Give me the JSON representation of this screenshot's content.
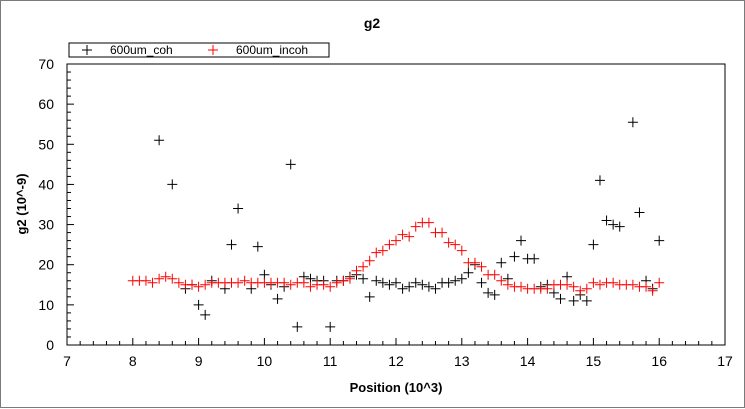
{
  "chart_data": {
    "type": "scatter",
    "title": "g2",
    "xlabel": "Position (10^3)",
    "ylabel": "g2 (10^-9)",
    "xlim": [
      7,
      17
    ],
    "ylim": [
      0,
      70
    ],
    "xticks": [
      "7",
      "8",
      "9",
      "10",
      "11",
      "12",
      "13",
      "14",
      "15",
      "16",
      "17"
    ],
    "yticks": [
      "0",
      "10",
      "20",
      "30",
      "40",
      "50",
      "60",
      "70"
    ],
    "grid": false,
    "legend_position": "top-left",
    "series": [
      {
        "name": "600um_coh",
        "color": "#000000",
        "marker": "plus",
        "points": [
          [
            8.4,
            51
          ],
          [
            8.6,
            40
          ],
          [
            8.8,
            14
          ],
          [
            8.9,
            15
          ],
          [
            9.0,
            10
          ],
          [
            9.1,
            7.5
          ],
          [
            9.2,
            16
          ],
          [
            9.4,
            14
          ],
          [
            9.5,
            25
          ],
          [
            9.6,
            34
          ],
          [
            9.8,
            14
          ],
          [
            9.9,
            24.5
          ],
          [
            10.0,
            17.5
          ],
          [
            10.1,
            15
          ],
          [
            10.2,
            11.5
          ],
          [
            10.3,
            14.5
          ],
          [
            10.4,
            45
          ],
          [
            10.5,
            4.5
          ],
          [
            10.6,
            17
          ],
          [
            10.7,
            16.5
          ],
          [
            10.8,
            16
          ],
          [
            10.9,
            16
          ],
          [
            11.0,
            4.5
          ],
          [
            11.1,
            16
          ],
          [
            11.2,
            16
          ],
          [
            11.3,
            17
          ],
          [
            11.4,
            17.5
          ],
          [
            11.5,
            16.5
          ],
          [
            11.6,
            12
          ],
          [
            11.7,
            16
          ],
          [
            11.8,
            15.5
          ],
          [
            11.9,
            15
          ],
          [
            12.0,
            15.5
          ],
          [
            12.1,
            14
          ],
          [
            12.2,
            14.5
          ],
          [
            12.3,
            15.5
          ],
          [
            12.4,
            15
          ],
          [
            12.5,
            14.5
          ],
          [
            12.6,
            14
          ],
          [
            12.7,
            15.5
          ],
          [
            12.8,
            15.5
          ],
          [
            12.9,
            16
          ],
          [
            13.0,
            16.5
          ],
          [
            13.1,
            18
          ],
          [
            13.2,
            20
          ],
          [
            13.3,
            15.5
          ],
          [
            13.4,
            13
          ],
          [
            13.5,
            12.5
          ],
          [
            13.6,
            20.5
          ],
          [
            13.7,
            16.5
          ],
          [
            13.8,
            22
          ],
          [
            13.9,
            26
          ],
          [
            14.0,
            21.5
          ],
          [
            14.1,
            21.5
          ],
          [
            14.2,
            14.5
          ],
          [
            14.3,
            15
          ],
          [
            14.4,
            13
          ],
          [
            14.5,
            11.5
          ],
          [
            14.6,
            17
          ],
          [
            14.7,
            11
          ],
          [
            14.8,
            12.5
          ],
          [
            14.9,
            11
          ],
          [
            15.0,
            25
          ],
          [
            15.1,
            41
          ],
          [
            15.2,
            31
          ],
          [
            15.3,
            30
          ],
          [
            15.4,
            29.5
          ],
          [
            15.6,
            55.5
          ],
          [
            15.7,
            33
          ],
          [
            15.8,
            16
          ],
          [
            15.9,
            14
          ],
          [
            16.0,
            26
          ]
        ]
      },
      {
        "name": "600um_incoh",
        "color": "#ff0000",
        "marker": "plus",
        "points": [
          [
            8.0,
            16
          ],
          [
            8.1,
            16
          ],
          [
            8.2,
            16
          ],
          [
            8.3,
            15.5
          ],
          [
            8.4,
            16.5
          ],
          [
            8.5,
            17
          ],
          [
            8.6,
            16.5
          ],
          [
            8.7,
            15.5
          ],
          [
            8.8,
            15
          ],
          [
            8.9,
            15
          ],
          [
            9.0,
            14.5
          ],
          [
            9.1,
            15
          ],
          [
            9.2,
            15.5
          ],
          [
            9.3,
            15.5
          ],
          [
            9.4,
            15.5
          ],
          [
            9.5,
            15.5
          ],
          [
            9.6,
            15.5
          ],
          [
            9.7,
            16
          ],
          [
            9.8,
            15.5
          ],
          [
            9.9,
            15.5
          ],
          [
            10.0,
            15.5
          ],
          [
            10.1,
            15.5
          ],
          [
            10.2,
            15.5
          ],
          [
            10.3,
            15.5
          ],
          [
            10.4,
            15
          ],
          [
            10.5,
            15.5
          ],
          [
            10.6,
            15.5
          ],
          [
            10.7,
            14.5
          ],
          [
            10.8,
            15
          ],
          [
            10.9,
            15
          ],
          [
            11.0,
            14.5
          ],
          [
            11.1,
            15.5
          ],
          [
            11.2,
            16
          ],
          [
            11.3,
            16.5
          ],
          [
            11.4,
            18.5
          ],
          [
            11.5,
            19.5
          ],
          [
            11.6,
            21
          ],
          [
            11.7,
            23
          ],
          [
            11.8,
            23.5
          ],
          [
            11.9,
            25
          ],
          [
            12.0,
            26
          ],
          [
            12.1,
            27.5
          ],
          [
            12.2,
            27
          ],
          [
            12.3,
            29.5
          ],
          [
            12.4,
            30.5
          ],
          [
            12.5,
            30.5
          ],
          [
            12.6,
            28
          ],
          [
            12.7,
            28
          ],
          [
            12.8,
            25.5
          ],
          [
            12.9,
            25
          ],
          [
            13.0,
            23.5
          ],
          [
            13.1,
            20.5
          ],
          [
            13.2,
            20.5
          ],
          [
            13.3,
            19.5
          ],
          [
            13.4,
            17.5
          ],
          [
            13.5,
            17.5
          ],
          [
            13.6,
            16
          ],
          [
            13.7,
            15
          ],
          [
            13.8,
            14.5
          ],
          [
            13.9,
            14.5
          ],
          [
            14.0,
            14
          ],
          [
            14.1,
            14
          ],
          [
            14.2,
            14
          ],
          [
            14.3,
            14
          ],
          [
            14.4,
            15
          ],
          [
            14.5,
            15
          ],
          [
            14.6,
            15
          ],
          [
            14.7,
            14.5
          ],
          [
            14.8,
            13.5
          ],
          [
            14.9,
            14
          ],
          [
            15.0,
            15.5
          ],
          [
            15.1,
            15
          ],
          [
            15.2,
            15.5
          ],
          [
            15.3,
            15.5
          ],
          [
            15.4,
            15
          ],
          [
            15.5,
            15
          ],
          [
            15.6,
            15
          ],
          [
            15.7,
            14.5
          ],
          [
            15.8,
            14.5
          ],
          [
            15.9,
            13.5
          ],
          [
            16.0,
            15.5
          ]
        ]
      }
    ]
  }
}
